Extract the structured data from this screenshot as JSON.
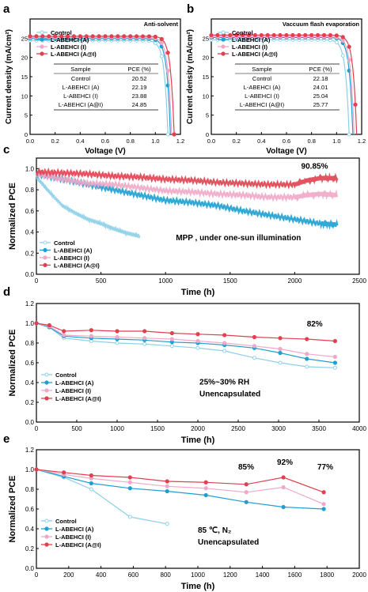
{
  "colors": {
    "control": "#8ccfe8",
    "A": "#1e9fcf",
    "I": "#f0a8c8",
    "AI": "#e0404f"
  },
  "chart_data": [
    {
      "panel": "a",
      "type": "line",
      "title": "Anti-solvent",
      "xlabel": "Voltage (V)",
      "ylabel": "Current density (mA/cm²)",
      "xlim": [
        0,
        1.2
      ],
      "ylim": [
        0,
        30
      ],
      "xticks": [
        "0.0",
        "0.2",
        "0.4",
        "0.6",
        "0.8",
        "1.0",
        "1.2"
      ],
      "yticks": [
        "0",
        "5",
        "10",
        "15",
        "20",
        "25"
      ],
      "legend": [
        "Control",
        "L-ABEHCI (A)",
        "L-ABEHCI (I)",
        "L-ABEHCI (A@I)"
      ],
      "series": [
        {
          "name": "Control",
          "jsc": 24.4,
          "voc": 1.1
        },
        {
          "name": "L-ABEHCI (A)",
          "jsc": 24.9,
          "voc": 1.12
        },
        {
          "name": "L-ABEHCI (I)",
          "jsc": 25.2,
          "voc": 1.13
        },
        {
          "name": "L-ABEHCI (A@I)",
          "jsc": 25.5,
          "voc": 1.15
        }
      ],
      "table": {
        "headers": [
          "Sample",
          "PCE  (%)"
        ],
        "rows": [
          [
            "Control",
            "20.52"
          ],
          [
            "L-ABEHCI (A)",
            "22.19"
          ],
          [
            "L-ABEHCI (I)",
            "23.88"
          ],
          [
            "L-ABEHCI (A@I)",
            "24.85"
          ]
        ]
      }
    },
    {
      "panel": "b",
      "type": "line",
      "title": "Vaccuum flash evaporation",
      "xlabel": "Voltage (V)",
      "ylabel": "Current density (mA/cm²)",
      "xlim": [
        0,
        1.2
      ],
      "ylim": [
        0,
        30
      ],
      "xticks": [
        "0.0",
        "0.2",
        "0.4",
        "0.6",
        "0.8",
        "1.0",
        "1.2"
      ],
      "yticks": [
        "0",
        "5",
        "10",
        "15",
        "20",
        "25"
      ],
      "legend": [
        "Control",
        "L-ABEHCI (A)",
        "L-ABEHCI (I)",
        "L-ABEHCI (A@I)"
      ],
      "series": [
        {
          "name": "Control",
          "jsc": 24.6,
          "voc": 1.1
        },
        {
          "name": "L-ABEHCI (A)",
          "jsc": 25.2,
          "voc": 1.13
        },
        {
          "name": "L-ABEHCI (I)",
          "jsc": 25.4,
          "voc": 1.14
        },
        {
          "name": "L-ABEHCI (A@I)",
          "jsc": 25.8,
          "voc": 1.16
        }
      ],
      "table": {
        "headers": [
          "Sample",
          "PCE  (%)"
        ],
        "rows": [
          [
            "Control",
            "22.18"
          ],
          [
            "L-ABEHCI (A)",
            "24.01"
          ],
          [
            "L-ABEHCI (I)",
            "25.04"
          ],
          [
            "L-ABEHCI (A@I)",
            "25.77"
          ]
        ]
      }
    },
    {
      "panel": "c",
      "type": "line",
      "xlabel": "Time (h)",
      "ylabel": "Normalized PCE",
      "xlim": [
        0,
        2500
      ],
      "ylim": [
        0,
        1.1
      ],
      "xticks": [
        "0",
        "500",
        "1000",
        "1500",
        "2000",
        "2500"
      ],
      "yticks": [
        "0.0",
        "0.2",
        "0.4",
        "0.6",
        "0.8",
        "1.0"
      ],
      "legend": [
        "Control",
        "L-ABEHCI (A)",
        "L-ABEHCI (I)",
        "L-ABEHCI (A@I)"
      ],
      "annotations": [
        "90.85%",
        "MPP , under one-sun illumination"
      ],
      "series": [
        {
          "name": "Control",
          "x": [
            0,
            50,
            100,
            200,
            300,
            400,
            500,
            600,
            700,
            800
          ],
          "y": [
            0.92,
            0.85,
            0.78,
            0.65,
            0.58,
            0.52,
            0.48,
            0.43,
            0.39,
            0.36
          ]
        },
        {
          "name": "L-ABEHCI (A)",
          "x": [
            0,
            200,
            400,
            600,
            800,
            1000,
            1200,
            1400,
            1600,
            1800,
            2000,
            2200,
            2330
          ],
          "y": [
            0.95,
            0.9,
            0.85,
            0.8,
            0.75,
            0.7,
            0.68,
            0.65,
            0.6,
            0.56,
            0.52,
            0.48,
            0.47
          ]
        },
        {
          "name": "L-ABEHCI (I)",
          "x": [
            0,
            200,
            400,
            600,
            800,
            1000,
            1200,
            1400,
            1600,
            1800,
            2000,
            2100,
            2200,
            2330
          ],
          "y": [
            0.95,
            0.9,
            0.86,
            0.85,
            0.82,
            0.79,
            0.78,
            0.76,
            0.75,
            0.73,
            0.73,
            0.75,
            0.76,
            0.75
          ]
        },
        {
          "name": "L-ABEHCI (A@I)",
          "x": [
            0,
            200,
            400,
            600,
            800,
            1000,
            1200,
            1400,
            1600,
            1800,
            2000,
            2100,
            2200,
            2330
          ],
          "y": [
            0.97,
            0.96,
            0.95,
            0.93,
            0.92,
            0.9,
            0.89,
            0.87,
            0.86,
            0.85,
            0.85,
            0.89,
            0.91,
            0.91
          ]
        }
      ]
    },
    {
      "panel": "d",
      "type": "line",
      "xlabel": "Time (h)",
      "ylabel": "Normalized PCE",
      "xlim": [
        0,
        4000
      ],
      "ylim": [
        0,
        1.2
      ],
      "xticks": [
        "0",
        "500",
        "1000",
        "1500",
        "2000",
        "2500",
        "3000",
        "3500",
        "4000"
      ],
      "yticks": [
        "0.0",
        "0.2",
        "0.4",
        "0.6",
        "0.8",
        "1.0",
        "1.2"
      ],
      "legend": [
        "Control",
        "L-ABEHCI (A)",
        "L-ABEHCI (I)",
        "L-ABEHCI (A@I)"
      ],
      "annotations": [
        "82%",
        "25%~30% RH",
        "Unencapsulated"
      ],
      "series": [
        {
          "name": "Control",
          "x": [
            0,
            160,
            340,
            680,
            1000,
            1340,
            1680,
            2000,
            2330,
            2700,
            3020,
            3350,
            3700
          ],
          "y": [
            1.0,
            0.96,
            0.85,
            0.82,
            0.8,
            0.79,
            0.77,
            0.75,
            0.72,
            0.65,
            0.6,
            0.56,
            0.55
          ]
        },
        {
          "name": "L-ABEHCI (A)",
          "x": [
            0,
            160,
            340,
            680,
            1000,
            1340,
            1680,
            2000,
            2330,
            2700,
            3020,
            3350,
            3700
          ],
          "y": [
            1.0,
            0.96,
            0.87,
            0.85,
            0.84,
            0.83,
            0.81,
            0.8,
            0.78,
            0.75,
            0.7,
            0.64,
            0.6
          ]
        },
        {
          "name": "L-ABEHCI (I)",
          "x": [
            0,
            160,
            340,
            680,
            1000,
            1340,
            1680,
            2000,
            2330,
            2700,
            3020,
            3350,
            3700
          ],
          "y": [
            1.0,
            0.97,
            0.88,
            0.87,
            0.86,
            0.85,
            0.84,
            0.82,
            0.8,
            0.77,
            0.74,
            0.69,
            0.66
          ]
        },
        {
          "name": "L-ABEHCI (A@I)",
          "x": [
            0,
            160,
            340,
            680,
            1000,
            1340,
            1680,
            2000,
            2330,
            2700,
            3020,
            3350,
            3700
          ],
          "y": [
            1.0,
            0.98,
            0.92,
            0.93,
            0.92,
            0.92,
            0.9,
            0.89,
            0.88,
            0.86,
            0.85,
            0.84,
            0.82
          ]
        }
      ]
    },
    {
      "panel": "e",
      "type": "line",
      "xlabel": "Time (h)",
      "ylabel": "Normalized PCE",
      "xlim": [
        0,
        2000
      ],
      "ylim": [
        0,
        1.2
      ],
      "xticks": [
        "0",
        "200",
        "400",
        "600",
        "800",
        "1000",
        "1200",
        "1400",
        "1600",
        "1800",
        "2000"
      ],
      "yticks": [
        "0.0",
        "0.2",
        "0.4",
        "0.6",
        "0.8",
        "1.0",
        "1.2"
      ],
      "legend": [
        "Control",
        "L-ABEHCI (A)",
        "L-ABEHCI (I)",
        "L-ABEHCI (A@I)"
      ],
      "annotations": [
        "85%",
        "92%",
        "77%",
        "85 ℃,  N₂",
        "Unencapsulated"
      ],
      "series": [
        {
          "name": "Control",
          "x": [
            0,
            170,
            340,
            580,
            810
          ],
          "y": [
            1.0,
            0.92,
            0.8,
            0.52,
            0.45
          ]
        },
        {
          "name": "L-ABEHCI (A)",
          "x": [
            0,
            170,
            340,
            580,
            810,
            1050,
            1300,
            1530,
            1780
          ],
          "y": [
            1.0,
            0.93,
            0.86,
            0.81,
            0.78,
            0.74,
            0.67,
            0.62,
            0.6
          ]
        },
        {
          "name": "L-ABEHCI (I)",
          "x": [
            0,
            170,
            340,
            580,
            810,
            1050,
            1300,
            1530,
            1780
          ],
          "y": [
            1.0,
            0.95,
            0.91,
            0.87,
            0.83,
            0.81,
            0.77,
            0.82,
            0.65
          ]
        },
        {
          "name": "L-ABEHCI (A@I)",
          "x": [
            0,
            170,
            340,
            580,
            810,
            1050,
            1300,
            1530,
            1780
          ],
          "y": [
            1.0,
            0.97,
            0.94,
            0.92,
            0.88,
            0.87,
            0.85,
            0.92,
            0.77
          ]
        }
      ]
    }
  ]
}
